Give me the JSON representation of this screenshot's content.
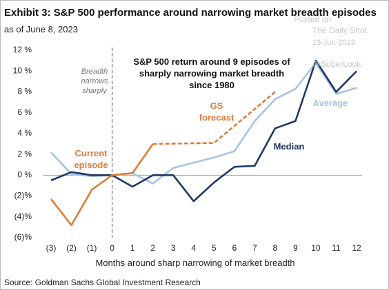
{
  "chart_data": {
    "type": "line",
    "title": "Exhibit 3: S&P 500 performance around narrowing market breadth episodes",
    "subtitle": "as of June 8, 2023",
    "x_label": "Months around sharp narrowing of market breadth",
    "source": "Source: Goldman Sachs Global Investment Research",
    "annotations": [
      "S&P 500 return around 9 episodes of sharply narrowing market breadth since 1980",
      "Breadth narrows sharply"
    ],
    "watermark": [
      "Posted on",
      "The Daily Shot",
      "13-Jun-2023",
      "@SoberLook"
    ],
    "xlim": [
      -3,
      12
    ],
    "xticks": [
      {
        "value": -3,
        "label": "(3)"
      },
      {
        "value": -2,
        "label": "(2)"
      },
      {
        "value": -1,
        "label": "(1)"
      },
      0,
      1,
      2,
      3,
      4,
      5,
      6,
      7,
      8,
      9,
      10,
      11,
      12
    ],
    "ylim": [
      -6,
      12
    ],
    "yticks": [
      {
        "value": -6,
        "label": "(6)%"
      },
      {
        "value": -4,
        "label": "(4)%"
      },
      {
        "value": -2,
        "label": "(2)%"
      },
      {
        "value": 0,
        "label": "0 %"
      },
      {
        "value": 2,
        "label": "2 %"
      },
      {
        "value": 4,
        "label": "4 %"
      },
      {
        "value": 6,
        "label": "6 %"
      },
      {
        "value": 8,
        "label": "8 %"
      },
      {
        "value": 10,
        "label": "10 %"
      },
      {
        "value": 12,
        "label": "12 %"
      }
    ],
    "series": [
      {
        "name": "Average",
        "color": "#a6c3e3",
        "dashed": false,
        "x": [
          -3,
          -2,
          -1,
          0,
          1,
          2,
          3,
          4,
          5,
          6,
          7,
          8,
          9,
          10,
          11,
          12
        ],
        "values": [
          2.2,
          0.1,
          -0.1,
          0,
          0.2,
          -0.8,
          0.7,
          1.2,
          1.7,
          2.3,
          5.2,
          7.3,
          8.3,
          10.8,
          7.8,
          8.4
        ]
      },
      {
        "name": "Median",
        "color": "#1f3864",
        "dashed": false,
        "x": [
          -3,
          -2,
          -1,
          0,
          1,
          2,
          3,
          4,
          5,
          6,
          7,
          8,
          9,
          10,
          11,
          12
        ],
        "values": [
          -0.5,
          0.3,
          0,
          0,
          -1.1,
          0,
          0,
          -2.5,
          -0.7,
          0.8,
          0.9,
          4.5,
          5.2,
          11,
          8,
          10
        ]
      },
      {
        "name": "Current episode",
        "color": "#e07b39",
        "dashed": false,
        "x": [
          -3,
          -2,
          -1,
          0,
          1,
          2
        ],
        "values": [
          -2.3,
          -4.8,
          -1.4,
          0,
          0.2,
          3.0
        ]
      },
      {
        "name": "GS forecast",
        "color": "#e07b39",
        "dashed": true,
        "x": [
          2,
          5,
          8
        ],
        "values": [
          3.0,
          3.1,
          8.0
        ]
      }
    ]
  }
}
